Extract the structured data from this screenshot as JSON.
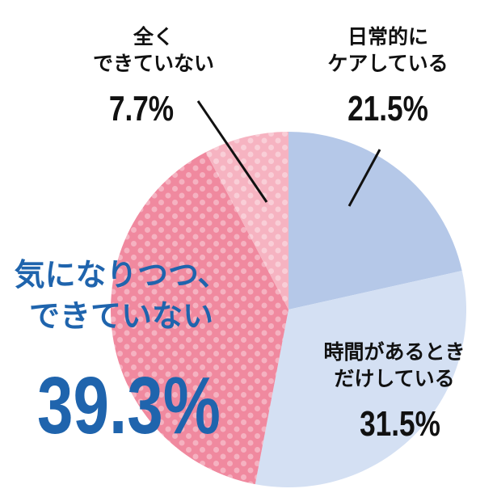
{
  "chart_data": {
    "type": "pie",
    "start": "top",
    "direction": "clockwise",
    "slices": [
      {
        "label": "日常的に\nケアしている",
        "value": 21.5,
        "display": "21.5%",
        "color": "#b5c8e8",
        "pattern": "none"
      },
      {
        "label": "時間があるとき\nだけしている",
        "value": 31.5,
        "display": "31.5%",
        "color": "#d4e0f3",
        "pattern": "none"
      },
      {
        "label": "気になりつつ、\nできていない",
        "value": 39.3,
        "display": "39.3%",
        "color": "#f0899f",
        "pattern": "dots",
        "highlight_color": "#1f64ad"
      },
      {
        "label": "全く\nできていない",
        "value": 7.7,
        "display": "7.7%",
        "color": "#f6b3c1",
        "pattern": "dots"
      }
    ]
  }
}
